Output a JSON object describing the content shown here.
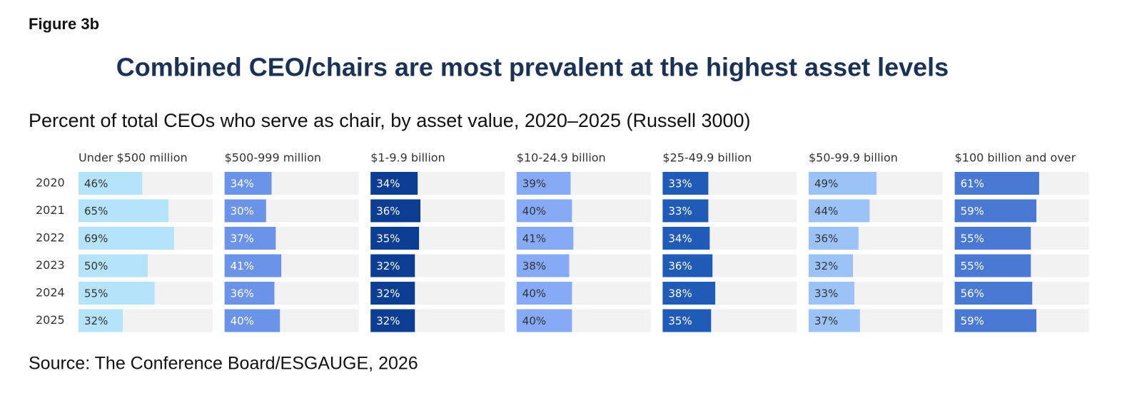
{
  "chart_data": {
    "type": "bar",
    "figure": "Figure 3b",
    "title": "Combined CEO/chairs are most prevalent at the highest asset levels",
    "subtitle": "Percent of total CEOs who serve as chair, by asset value, 2020–2025 (Russell 3000)",
    "source": "Source: The Conference Board/ESGAUGE, 2026",
    "categories": [
      "2020",
      "2021",
      "2022",
      "2023",
      "2024",
      "2025"
    ],
    "xlim": [
      0,
      100
    ],
    "series": [
      {
        "name": "Under $500 million",
        "color": "#b5e3f9",
        "values": [
          46,
          65,
          69,
          50,
          55,
          32
        ],
        "value_labels": [
          "46%",
          "65%",
          "69%",
          "50%",
          "55%",
          "32%"
        ]
      },
      {
        "name": "$500-999 million",
        "color": "#6b93e8",
        "values": [
          34,
          30,
          37,
          41,
          36,
          40
        ],
        "value_labels": [
          "34%",
          "30%",
          "37%",
          "41%",
          "36%",
          "40%"
        ]
      },
      {
        "name": "$1-9.9 billion",
        "color": "#0b3d92",
        "values": [
          34,
          36,
          35,
          32,
          32,
          32
        ],
        "value_labels": [
          "34%",
          "36%",
          "35%",
          "32%",
          "32%",
          "32%"
        ]
      },
      {
        "name": "$10-24.9 billion",
        "color": "#86aaf6",
        "values": [
          39,
          40,
          41,
          38,
          40,
          40
        ],
        "value_labels": [
          "39%",
          "40%",
          "41%",
          "38%",
          "40%",
          "40%"
        ]
      },
      {
        "name": "$25-49.9 billion",
        "color": "#1f5bb7",
        "values": [
          33,
          33,
          34,
          36,
          38,
          35
        ],
        "value_labels": [
          "33%",
          "33%",
          "34%",
          "36%",
          "38%",
          "35%"
        ]
      },
      {
        "name": "$50-99.9 billion",
        "color": "#9cc3f7",
        "values": [
          49,
          44,
          36,
          32,
          33,
          37
        ],
        "value_labels": [
          "49%",
          "44%",
          "36%",
          "32%",
          "33%",
          "37%"
        ]
      },
      {
        "name": "$100 billion and over",
        "color": "#4a79d4",
        "values": [
          61,
          59,
          55,
          55,
          56,
          59
        ],
        "value_labels": [
          "61%",
          "59%",
          "55%",
          "55%",
          "56%",
          "59%"
        ]
      }
    ]
  }
}
